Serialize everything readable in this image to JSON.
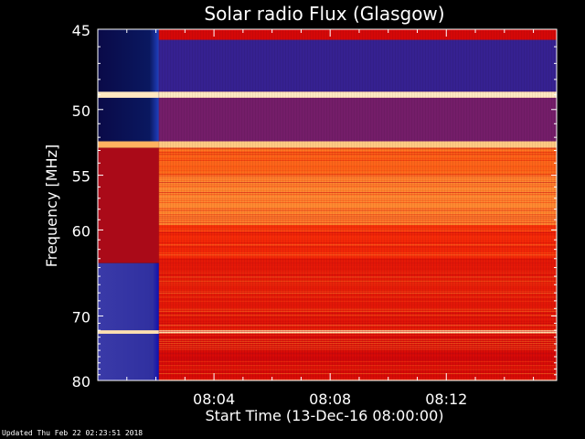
{
  "chart_data": {
    "type": "heatmap",
    "title": "Solar radio Flux (Glasgow)",
    "ylabel": "Frequency [MHz]",
    "xlabel": "Start Time (13-Dec-16 08:00:00)",
    "x_unit": "minutes after start",
    "xlim": [
      0,
      15.8
    ],
    "ylim": [
      80,
      45
    ],
    "y_scale": "reciprocal",
    "y_ticks": [
      45,
      50,
      55,
      60,
      70,
      80
    ],
    "y_tick_labels": [
      "45",
      "50",
      "55",
      "60",
      "70",
      "80"
    ],
    "x_ticks": [
      4,
      8,
      12
    ],
    "x_tick_labels": [
      "08:04",
      "08:08",
      "08:12"
    ],
    "colormap": [
      "#000010",
      "#1a1a8a",
      "#5a2a9a",
      "#9a0a20",
      "#d40808",
      "#f52a08",
      "#ff7a20",
      "#ffc070",
      "#fff0d0"
    ],
    "segments": [
      {
        "x_start": 0,
        "x_end": 2.1,
        "state": "background"
      },
      {
        "x_start": 2.1,
        "x_end": 15.8,
        "state": "observing"
      }
    ],
    "band_levels": [
      {
        "f_start": 45,
        "f_end": 45.6,
        "level": 0.5,
        "note": "upper edge"
      },
      {
        "f_start": 45.6,
        "f_end": 48.8,
        "level": 0.18
      },
      {
        "f_start": 48.8,
        "f_end": 49.2,
        "level": 0.98
      },
      {
        "f_start": 49.2,
        "f_end": 52.3,
        "level": 0.3
      },
      {
        "f_start": 52.3,
        "f_end": 52.8,
        "level": 0.9
      },
      {
        "f_start": 52.8,
        "f_end": 55.0,
        "level": 0.72
      },
      {
        "f_start": 55.0,
        "f_end": 59.5,
        "level": 0.78
      },
      {
        "f_start": 59.5,
        "f_end": 63.0,
        "level": 0.62
      },
      {
        "f_start": 63.0,
        "f_end": 72.5,
        "level": 0.55
      },
      {
        "f_start": 72.0,
        "f_end": 72.5,
        "level": 0.95
      },
      {
        "f_start": 72.5,
        "f_end": 80,
        "level": 0.5
      }
    ],
    "background_colors": {
      "upper": "#1a2a8a",
      "upper_dark": "#0a0a40",
      "lower": "#3a3aa0",
      "edge_red": "#aa0a18"
    }
  },
  "footer_text": "Updated Thu Feb 22 02:23:51 2018"
}
